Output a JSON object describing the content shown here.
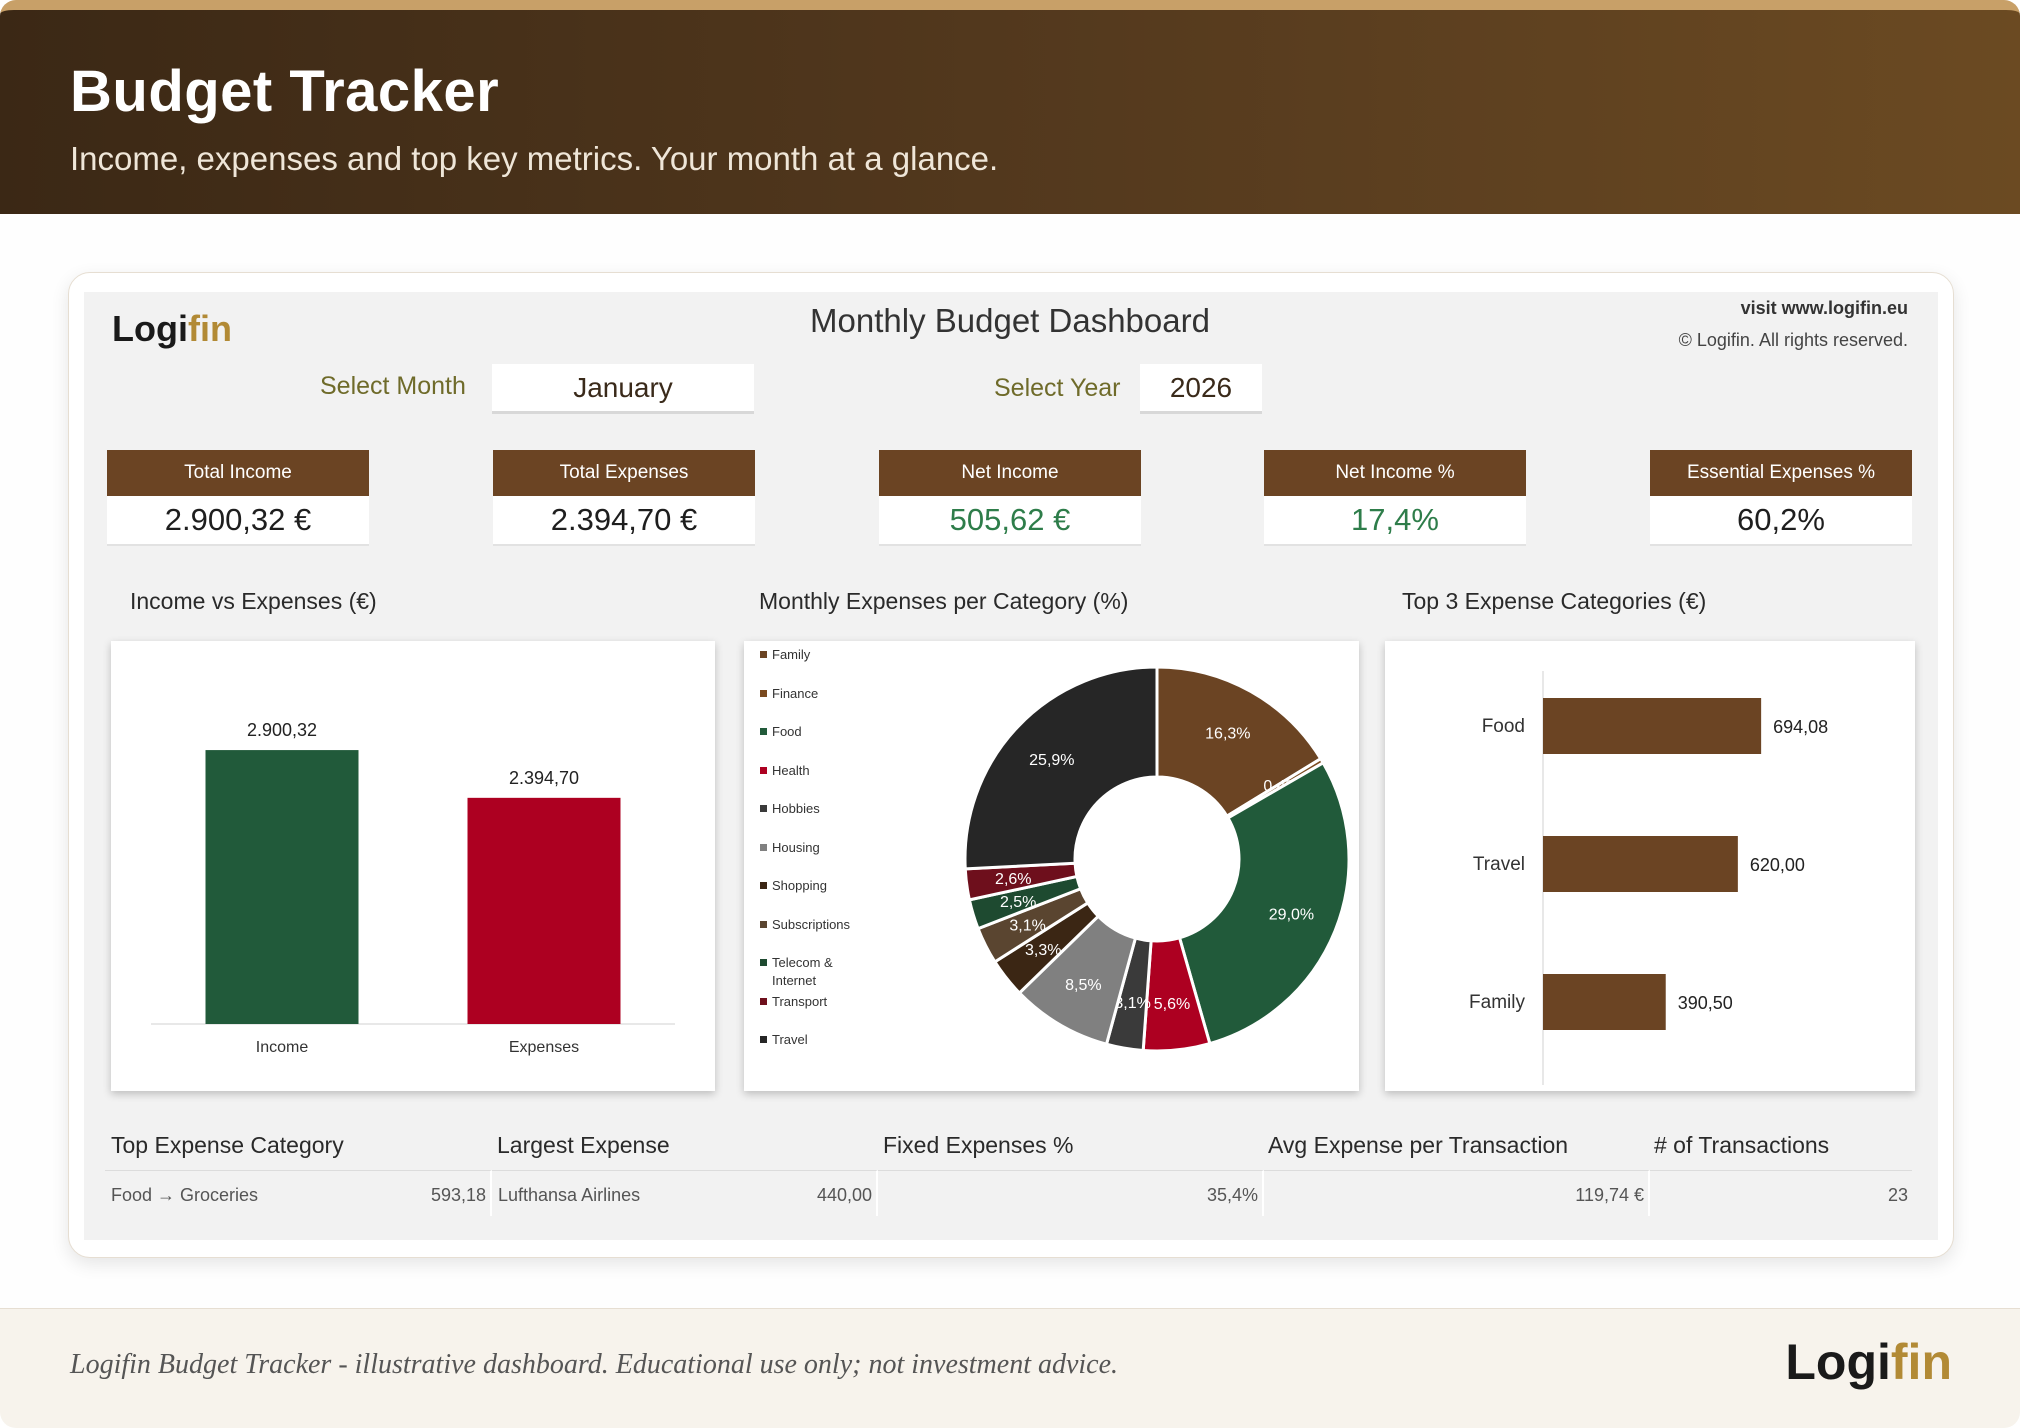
{
  "hero": {
    "title": "Budget Tracker",
    "subtitle": "Income, expenses and top key metrics. Your month at a glance."
  },
  "sheet": {
    "logo_left": "Logi",
    "logo_right": "fin",
    "title": "Monthly Budget Dashboard",
    "visit": "visit www.logifin.eu",
    "rights": "© Logifin. All rights reserved."
  },
  "selectors": {
    "month_label": "Select Month",
    "month_value": "January",
    "year_label": "Select Year",
    "year_value": "2026"
  },
  "kpis": [
    {
      "label": "Total Income",
      "value": "2.900,32 €"
    },
    {
      "label": "Total Expenses",
      "value": "2.394,70 €"
    },
    {
      "label": "Net Income",
      "value": "505,62 €"
    },
    {
      "label": "Net Income %",
      "value": "17,4%"
    },
    {
      "label": "Essential Expenses %",
      "value": "60,2%"
    }
  ],
  "colors": {
    "brown": "#6b4423",
    "green": "#215a3a",
    "red": "#ad0021",
    "positive_text": "#2e7d4a"
  },
  "chart_data": [
    {
      "type": "bar",
      "title": "Income vs Expenses (€)",
      "categories": [
        "Income",
        "Expenses"
      ],
      "values": [
        2900.32,
        2394.7
      ],
      "value_labels": [
        "2.900,32",
        "2.394,70"
      ],
      "colors": [
        "#215a3a",
        "#ad0021"
      ],
      "ylim": [
        0,
        3600
      ]
    },
    {
      "type": "pie",
      "title": "Monthly Expenses per Category (%)",
      "categories": [
        "Family",
        "Finance",
        "Food",
        "Health",
        "Hobbies",
        "Housing",
        "Shopping",
        "Subscriptions",
        "Telecom & Internet",
        "Transport",
        "Travel"
      ],
      "values": [
        16.3,
        0.4,
        29.0,
        5.6,
        3.1,
        8.5,
        3.3,
        3.1,
        2.5,
        2.6,
        25.9
      ],
      "value_labels": [
        "16,3%",
        "0,4%",
        "29,0%",
        "5,6%",
        "3,1%",
        "8,5%",
        "3,3%",
        "3,1%",
        "2,5%",
        "2,6%",
        "25,9%"
      ],
      "colors": [
        "#6b4423",
        "#7a4a1f",
        "#215a3a",
        "#ad0021",
        "#3a3a3a",
        "#808080",
        "#3b2614",
        "#5a4530",
        "#1e4a30",
        "#6e0f1c",
        "#262626"
      ],
      "donut": true,
      "legend_position": "left"
    },
    {
      "type": "bar",
      "orientation": "horizontal",
      "title": "Top 3 Expense Categories (€)",
      "categories": [
        "Food",
        "Travel",
        "Family"
      ],
      "values": [
        694.08,
        620.0,
        390.5
      ],
      "value_labels": [
        "694,08",
        "620,00",
        "390,50"
      ],
      "colors": [
        "#6b4423"
      ],
      "xlim": [
        0,
        1050
      ]
    }
  ],
  "metrics": [
    {
      "label": "Top Expense Category",
      "left": "Food → Groceries",
      "right": "593,18"
    },
    {
      "label": "Largest Expense",
      "left": "Lufthansa Airlines",
      "right": "440,00"
    },
    {
      "label": "Fixed Expenses %",
      "left": "",
      "right": "35,4%"
    },
    {
      "label": "Avg Expense per Transaction",
      "left": "",
      "right": "119,74 €"
    },
    {
      "label": "# of Transactions",
      "left": "",
      "right": "23"
    }
  ],
  "footer": {
    "disclaimer": "Logifin Budget Tracker - illustrative dashboard. Educational use only; not investment advice.",
    "logo_left": "Logi",
    "logo_right": "fin"
  }
}
